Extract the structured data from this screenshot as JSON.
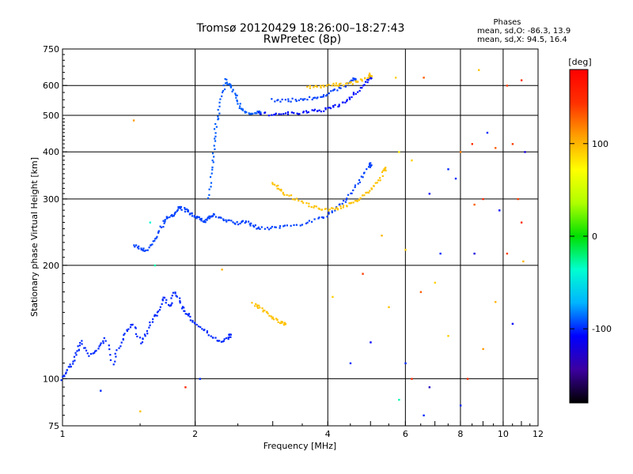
{
  "chart_data": {
    "type": "scatter",
    "title": "Tromsø 20120429 18:26:00–18:27:43",
    "subtitle": "RwPretec (8p)",
    "xlabel": "Frequency [MHz]",
    "ylabel": "Stationary phase Virtual Height [km]",
    "x_scale": "log",
    "y_scale": "log",
    "xlim": [
      1,
      12
    ],
    "ylim": [
      75,
      750
    ],
    "x_ticks": [
      "1",
      "2",
      "4",
      "6",
      "8",
      "10",
      "12"
    ],
    "x_tick_values": [
      1,
      2,
      4,
      6,
      8,
      10,
      12
    ],
    "y_ticks": [
      "75",
      "100",
      "200",
      "300",
      "400",
      "500",
      "600",
      "750"
    ],
    "y_tick_values": [
      75,
      100,
      200,
      300,
      400,
      500,
      600,
      750
    ],
    "x_grid": [
      2,
      4,
      6,
      8,
      10
    ],
    "y_grid": [
      100,
      200,
      300,
      400,
      500,
      600
    ],
    "grid": true,
    "phase_stats": {
      "header": "Phases",
      "line_o": "mean, sd,O: -86.3, 13.9",
      "line_x": "mean, sd,X:  94.5, 16.4"
    },
    "colorbar": {
      "label": "[deg]",
      "range": [
        -180,
        180
      ],
      "ticks": [
        "100",
        "0",
        "-100"
      ],
      "tick_values": [
        100,
        0,
        -100
      ],
      "colors": [
        "#000000",
        "#3c00a0",
        "#0000ff",
        "#00b4ff",
        "#00ffd0",
        "#00e000",
        "#b0ff00",
        "#ffff00",
        "#ffa000",
        "#ff3000",
        "#ff0000"
      ]
    },
    "series": [
      {
        "trace": "Ionogram echo trace (O-mode, low band)",
        "phase_deg": -100,
        "points": [
          [
            1.0,
            100
          ],
          [
            1.02,
            105
          ],
          [
            1.05,
            110
          ],
          [
            1.08,
            118
          ],
          [
            1.1,
            125
          ],
          [
            1.15,
            115
          ],
          [
            1.2,
            120
          ],
          [
            1.25,
            128
          ],
          [
            1.3,
            110
          ],
          [
            1.35,
            122
          ],
          [
            1.4,
            135
          ],
          [
            1.45,
            140
          ],
          [
            1.5,
            125
          ],
          [
            1.55,
            132
          ],
          [
            1.6,
            145
          ],
          [
            1.65,
            150
          ],
          [
            1.7,
            165
          ],
          [
            1.75,
            155
          ],
          [
            1.8,
            170
          ],
          [
            1.85,
            160
          ],
          [
            1.9,
            150
          ],
          [
            1.95,
            145
          ],
          [
            2.0,
            140
          ],
          [
            2.1,
            135
          ],
          [
            2.2,
            128
          ],
          [
            2.3,
            125
          ],
          [
            2.4,
            130
          ]
        ]
      },
      {
        "trace": "F1 region trace",
        "phase_deg": -95,
        "points": [
          [
            1.45,
            225
          ],
          [
            1.5,
            222
          ],
          [
            1.55,
            218
          ],
          [
            1.6,
            230
          ],
          [
            1.65,
            245
          ],
          [
            1.7,
            260
          ],
          [
            1.75,
            270
          ],
          [
            1.8,
            275
          ],
          [
            1.85,
            285
          ],
          [
            1.9,
            280
          ],
          [
            1.95,
            275
          ],
          [
            2.0,
            270
          ],
          [
            2.05,
            265
          ],
          [
            2.1,
            262
          ],
          [
            2.15,
            268
          ],
          [
            2.2,
            272
          ],
          [
            2.3,
            265
          ],
          [
            2.4,
            262
          ],
          [
            2.5,
            258
          ],
          [
            2.6,
            262
          ],
          [
            2.7,
            255
          ],
          [
            2.8,
            250
          ],
          [
            3.0,
            252
          ],
          [
            3.2,
            254
          ],
          [
            3.5,
            258
          ],
          [
            3.8,
            265
          ],
          [
            4.0,
            272
          ],
          [
            4.2,
            285
          ],
          [
            4.4,
            300
          ],
          [
            4.6,
            320
          ],
          [
            4.8,
            345
          ],
          [
            5.0,
            370
          ]
        ]
      },
      {
        "trace": "Vertical spread near 2.2 MHz",
        "phase_deg": -90,
        "points": [
          [
            2.15,
            300
          ],
          [
            2.18,
            350
          ],
          [
            2.2,
            400
          ],
          [
            2.22,
            450
          ],
          [
            2.25,
            500
          ],
          [
            2.3,
            560
          ],
          [
            2.35,
            620
          ],
          [
            2.4,
            600
          ],
          [
            2.45,
            580
          ],
          [
            2.5,
            540
          ],
          [
            2.55,
            520
          ],
          [
            2.6,
            510
          ],
          [
            2.7,
            505
          ],
          [
            2.8,
            508
          ]
        ]
      },
      {
        "trace": "Multiple-hop F trace",
        "phase_deg": -105,
        "points": [
          [
            2.8,
            505
          ],
          [
            3.0,
            504
          ],
          [
            3.2,
            505
          ],
          [
            3.4,
            507
          ],
          [
            3.6,
            510
          ],
          [
            3.8,
            515
          ],
          [
            4.0,
            520
          ],
          [
            4.2,
            530
          ],
          [
            4.4,
            545
          ],
          [
            4.6,
            570
          ],
          [
            4.8,
            600
          ],
          [
            5.0,
            630
          ]
        ]
      },
      {
        "trace": "Second-hop trace (upper)",
        "phase_deg": -95,
        "points": [
          [
            3.0,
            550
          ],
          [
            3.2,
            548
          ],
          [
            3.4,
            550
          ],
          [
            3.6,
            553
          ],
          [
            3.8,
            560
          ],
          [
            4.0,
            570
          ],
          [
            4.2,
            585
          ],
          [
            4.4,
            605
          ],
          [
            4.6,
            625
          ]
        ]
      },
      {
        "trace": "X-mode trace (yellow, F region)",
        "phase_deg": 95,
        "points": [
          [
            3.0,
            330
          ],
          [
            3.1,
            320
          ],
          [
            3.2,
            310
          ],
          [
            3.4,
            298
          ],
          [
            3.6,
            290
          ],
          [
            3.8,
            284
          ],
          [
            4.0,
            282
          ],
          [
            4.2,
            283
          ],
          [
            4.4,
            287
          ],
          [
            4.6,
            295
          ],
          [
            4.8,
            305
          ],
          [
            5.0,
            318
          ],
          [
            5.2,
            335
          ],
          [
            5.4,
            360
          ]
        ]
      },
      {
        "trace": "X-mode trace (yellow, upper)",
        "phase_deg": 95,
        "points": [
          [
            3.6,
            595
          ],
          [
            3.8,
            598
          ],
          [
            4.0,
            600
          ],
          [
            4.2,
            603
          ],
          [
            4.4,
            605
          ],
          [
            4.6,
            612
          ],
          [
            4.8,
            625
          ],
          [
            5.0,
            640
          ]
        ]
      },
      {
        "trace": "X-mode trace (yellow, E region)",
        "phase_deg": 95,
        "points": [
          [
            2.7,
            158
          ],
          [
            2.8,
            155
          ],
          [
            2.9,
            150
          ],
          [
            3.0,
            145
          ],
          [
            3.1,
            142
          ],
          [
            3.2,
            140
          ]
        ]
      }
    ],
    "scatter_points": {
      "note": "Sparse isolated echoes across the ionogram (phase-coloured)",
      "points": [
        [
          5.7,
          630,
          90
        ],
        [
          6.6,
          630,
          130
        ],
        [
          8.8,
          660,
          95
        ],
        [
          10.2,
          600,
          140
        ],
        [
          11.0,
          620,
          150
        ],
        [
          5.8,
          400,
          80
        ],
        [
          6.2,
          380,
          90
        ],
        [
          7.5,
          360,
          -100
        ],
        [
          8.0,
          400,
          120
        ],
        [
          8.5,
          420,
          150
        ],
        [
          9.2,
          450,
          -100
        ],
        [
          9.6,
          410,
          130
        ],
        [
          10.5,
          420,
          140
        ],
        [
          11.2,
          400,
          -120
        ],
        [
          6.8,
          310,
          -110
        ],
        [
          7.8,
          340,
          -100
        ],
        [
          8.6,
          290,
          130
        ],
        [
          9.0,
          300,
          150
        ],
        [
          9.8,
          280,
          -110
        ],
        [
          10.8,
          300,
          140
        ],
        [
          11.0,
          260,
          150
        ],
        [
          5.3,
          240,
          100
        ],
        [
          6.0,
          220,
          90
        ],
        [
          7.2,
          215,
          -100
        ],
        [
          8.6,
          215,
          -120
        ],
        [
          10.2,
          215,
          140
        ],
        [
          11.1,
          205,
          100
        ],
        [
          6.5,
          170,
          130
        ],
        [
          7.0,
          180,
          90
        ],
        [
          9.6,
          160,
          100
        ],
        [
          10.5,
          140,
          -110
        ],
        [
          6.0,
          110,
          -100
        ],
        [
          7.5,
          130,
          90
        ],
        [
          8.3,
          100,
          150
        ],
        [
          9.0,
          120,
          110
        ],
        [
          5.0,
          125,
          -110
        ],
        [
          6.2,
          100,
          150
        ],
        [
          6.8,
          95,
          -130
        ],
        [
          8.0,
          85,
          -100
        ],
        [
          5.8,
          88,
          -30
        ],
        [
          6.6,
          80,
          -100
        ],
        [
          1.22,
          93,
          -100
        ],
        [
          1.5,
          82,
          95
        ],
        [
          1.9,
          95,
          150
        ],
        [
          2.05,
          100,
          -100
        ],
        [
          1.45,
          485,
          110
        ],
        [
          1.58,
          260,
          -40
        ],
        [
          1.62,
          200,
          -30
        ],
        [
          2.3,
          195,
          100
        ],
        [
          4.1,
          165,
          90
        ],
        [
          4.5,
          110,
          -100
        ],
        [
          5.5,
          155,
          95
        ],
        [
          4.8,
          190,
          140
        ]
      ]
    }
  }
}
